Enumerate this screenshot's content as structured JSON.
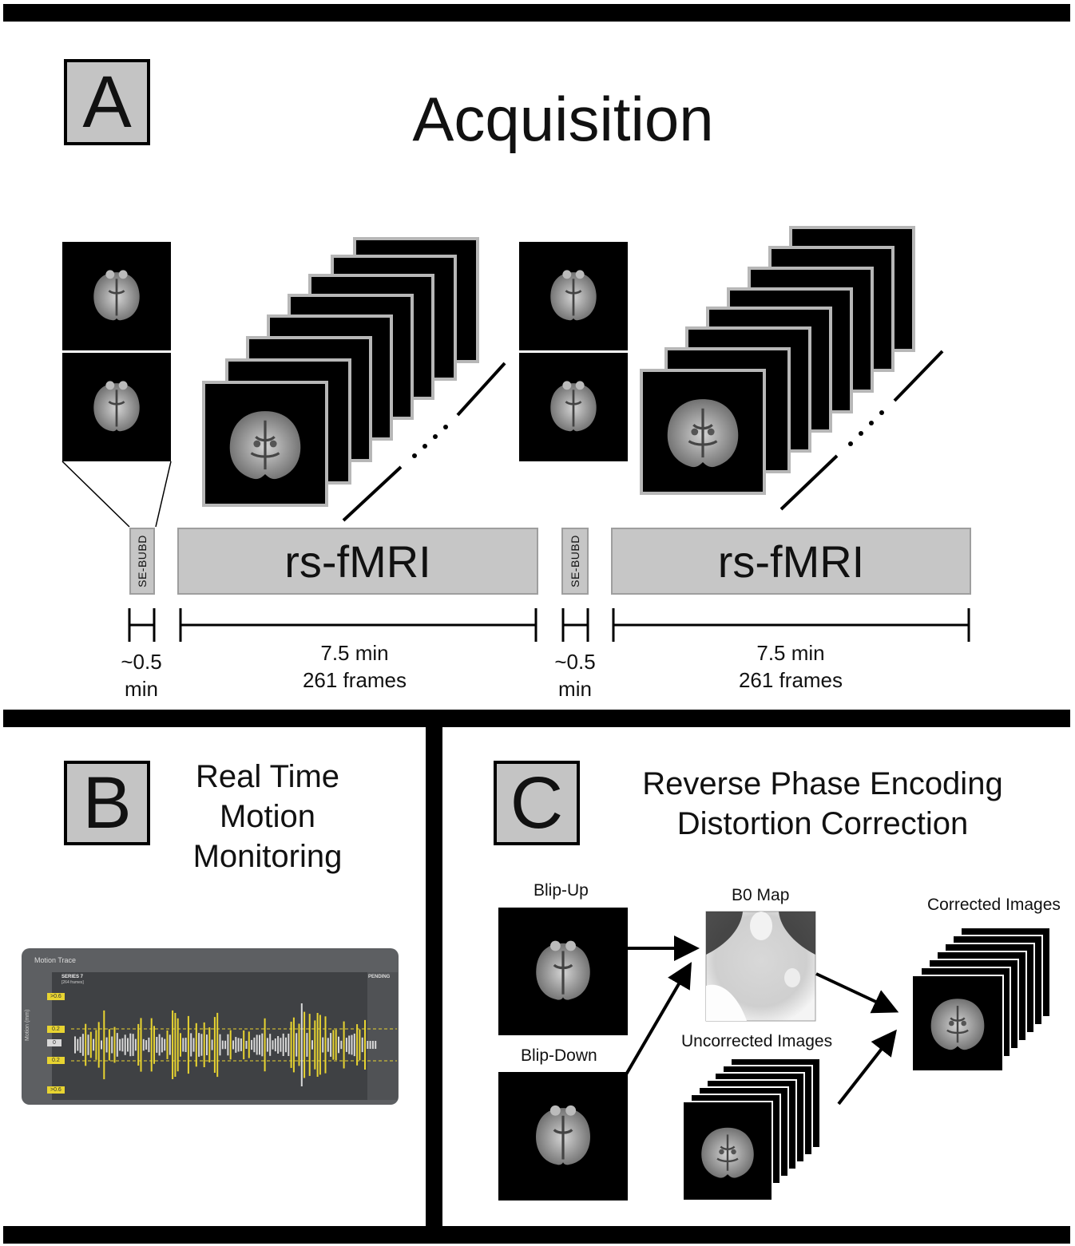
{
  "panel_a": {
    "letter": "A",
    "title": "Acquisition",
    "bars": {
      "se_bubd_1": "SE-BUBD",
      "rsfmri_1": "rs-fMRI",
      "se_bubd_2": "SE-BUBD",
      "rsfmri_2": "rs-fMRI"
    },
    "durations": {
      "se_1": {
        "line1": "~0.5",
        "line2": "min"
      },
      "rs_1": {
        "line1": "7.5 min",
        "line2": "261 frames"
      },
      "se_2": {
        "line1": "~0.5",
        "line2": "min"
      },
      "rs_2": {
        "line1": "7.5 min",
        "line2": "261 frames"
      }
    }
  },
  "panel_b": {
    "letter": "B",
    "title_lines": [
      "Real Time",
      "Motion",
      "Monitoring"
    ],
    "monitor": {
      "header": "Motion Trace",
      "series": "SERIES 7",
      "frames": "[264 frames]",
      "status": "PENDING",
      "axis_label": "Motion (mm)",
      "thresholds": [
        ">0.6",
        "0.2",
        "0",
        "0.2",
        ">0.6"
      ]
    }
  },
  "panel_c": {
    "letter": "C",
    "title_lines": [
      "Reverse Phase Encoding",
      "Distortion Correction"
    ],
    "labels": {
      "blip_up": "Blip-Up",
      "blip_down": "Blip-Down",
      "b0_map": "B0 Map",
      "uncorrected": "Uncorrected Images",
      "corrected": "Corrected Images"
    }
  },
  "colors": {
    "border": "#000000",
    "letter_box": "#c4c4c4",
    "sequence_bar": "#c6c6c6",
    "motion_yellow": "#e8d431",
    "motion_gray": "#d9d9d9",
    "monitor_bg": "#5d5f62"
  }
}
